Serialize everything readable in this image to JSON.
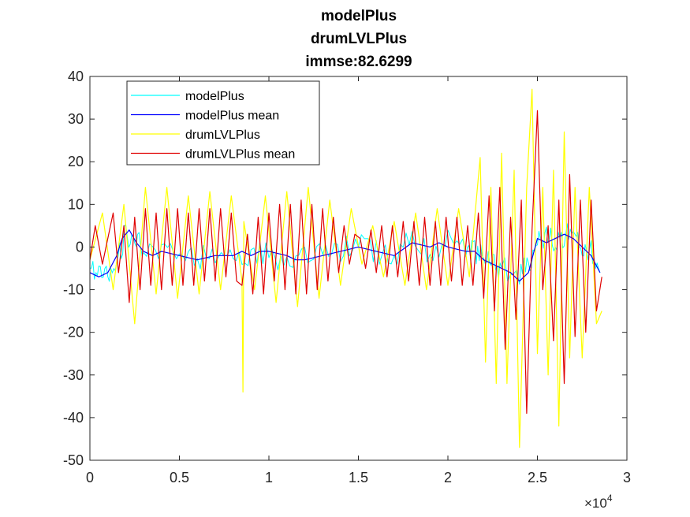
{
  "chart_data": {
    "type": "line",
    "title_lines": [
      "modelPlus",
      "drumLVLPlus",
      "immse:82.6299"
    ],
    "xlabel": "",
    "ylabel": "",
    "xlim": [
      0,
      30000
    ],
    "ylim": [
      -50,
      40
    ],
    "x_ticks": [
      0,
      5000,
      10000,
      15000,
      20000,
      25000,
      30000
    ],
    "x_tick_labels": [
      "0",
      "0.5",
      "1",
      "1.5",
      "2",
      "2.5",
      "3"
    ],
    "x_exponent_label": "×10",
    "x_exponent_power": "4",
    "y_ticks": [
      -50,
      -40,
      -30,
      -20,
      -10,
      0,
      10,
      20,
      30,
      40
    ],
    "y_tick_labels": [
      "-50",
      "-40",
      "-30",
      "-20",
      "-10",
      "0",
      "10",
      "20",
      "30",
      "40"
    ],
    "grid": false,
    "legend_position": "top-left",
    "series": [
      {
        "name": "modelPlus",
        "color": "#00ffff",
        "x": [
          0,
          500,
          1000,
          1500,
          2000,
          2500,
          3000,
          4000,
          5000,
          6000,
          7000,
          8000,
          9000,
          10000,
          11000,
          12000,
          13000,
          14000,
          15000,
          16000,
          17000,
          18000,
          19000,
          20000,
          21000,
          21500,
          22000,
          22500,
          23000,
          24000,
          24500,
          25000,
          25500,
          26000,
          26500,
          27000,
          27500,
          28000,
          28500
        ],
        "values": [
          -5,
          -7,
          -6,
          -3,
          3,
          2,
          -1,
          -2,
          -1,
          -3,
          -1,
          -3,
          -2,
          -1,
          -4,
          -3,
          -2,
          -1,
          1,
          -1,
          -2,
          2,
          -1,
          1,
          -1,
          -1,
          -3,
          -4,
          -5,
          -7,
          -4,
          2,
          2,
          1,
          3,
          2,
          0,
          -1,
          -6
        ],
        "noise": 3
      },
      {
        "name": "modelPlus mean",
        "color": "#0000ff",
        "x": [
          0,
          500,
          1000,
          1500,
          1800,
          2200,
          2600,
          3000,
          3500,
          4000,
          5000,
          6000,
          7000,
          8000,
          8500,
          9000,
          9500,
          10000,
          11000,
          11500,
          12000,
          13000,
          14000,
          15000,
          16000,
          17000,
          18000,
          19000,
          19500,
          20000,
          21000,
          21500,
          22000,
          22500,
          23000,
          23500,
          24000,
          24500,
          25000,
          25500,
          26000,
          26500,
          27000,
          27500,
          28000,
          28500
        ],
        "values": [
          -6,
          -7,
          -6,
          -2,
          2,
          4,
          1,
          -1,
          -2,
          -1,
          -2,
          -3,
          -2,
          -2,
          -1,
          -2,
          -1,
          -1,
          -2,
          -3,
          -3,
          -2,
          -1,
          0,
          -1,
          -2,
          1,
          0,
          1,
          0,
          -1,
          -1,
          -3,
          -4,
          -5,
          -6,
          -8,
          -6,
          2,
          1,
          2,
          3,
          2,
          0,
          -2,
          -6
        ]
      },
      {
        "name": "drumLVLPlus",
        "color": "#ffff00",
        "x": [
          0,
          700,
          1300,
          1900,
          2500,
          3100,
          3700,
          4300,
          4900,
          5500,
          6100,
          6700,
          7300,
          7900,
          8500,
          8550,
          8600,
          9200,
          9800,
          10400,
          11000,
          11600,
          12200,
          12800,
          13400,
          14000,
          14600,
          15200,
          15800,
          16400,
          17000,
          17600,
          18200,
          18800,
          19400,
          20000,
          20600,
          21200,
          21800,
          22100,
          22400,
          22700,
          23000,
          23300,
          23700,
          24000,
          24400,
          24700,
          25000,
          25300,
          25600,
          25900,
          26200,
          26500,
          26800,
          27100,
          27500,
          27900,
          28300,
          28600
        ],
        "values": [
          -3,
          8,
          -10,
          10,
          -18,
          14,
          -11,
          14,
          -12,
          12,
          -11,
          13,
          -10,
          12,
          -8,
          -34,
          6,
          -10,
          12,
          -13,
          13,
          -14,
          14,
          -12,
          11,
          -9,
          9,
          -4,
          5,
          -7,
          6,
          -9,
          8,
          -10,
          9,
          -9,
          9,
          -7,
          21,
          -27,
          14,
          -32,
          22,
          -32,
          18,
          -47,
          14,
          37,
          -25,
          14,
          -30,
          18,
          -42,
          27,
          -26,
          14,
          -26,
          14,
          -18,
          -15
        ]
      },
      {
        "name": "drumLVLPlus mean",
        "color": "#e00000",
        "x": [
          0,
          300,
          700,
          1000,
          1300,
          1600,
          1900,
          2200,
          2500,
          2800,
          3100,
          3400,
          3700,
          4000,
          4300,
          4600,
          4900,
          5200,
          5500,
          5800,
          6100,
          6400,
          6700,
          7000,
          7300,
          7600,
          7900,
          8200,
          8500,
          8800,
          9100,
          9400,
          9700,
          10000,
          10300,
          10600,
          10900,
          11200,
          11500,
          11800,
          12100,
          12400,
          12700,
          13000,
          13300,
          13600,
          13900,
          14200,
          14500,
          14800,
          15100,
          15400,
          15700,
          16000,
          16300,
          16600,
          16900,
          17200,
          17500,
          17800,
          18100,
          18400,
          18700,
          19000,
          19300,
          19600,
          19900,
          20200,
          20500,
          20800,
          21100,
          21400,
          21700,
          22000,
          22300,
          22600,
          22900,
          23200,
          23500,
          23800,
          24100,
          24400,
          24700,
          25000,
          25300,
          25600,
          25900,
          26200,
          26500,
          26800,
          27100,
          27400,
          27700,
          28000,
          28300,
          28600
        ],
        "values": [
          -3,
          5,
          -4,
          2,
          8,
          -6,
          5,
          -13,
          7,
          -10,
          9,
          -9,
          8,
          -10,
          9,
          -9,
          9,
          -9,
          8,
          -9,
          9,
          -8,
          9,
          -8,
          9,
          -7,
          8,
          -8,
          -9,
          3,
          -11,
          7,
          -11,
          8,
          -8,
          10,
          -10,
          10,
          -11,
          11,
          -11,
          10,
          -10,
          9,
          -8,
          7,
          -6,
          5,
          -4,
          3,
          2,
          -5,
          4,
          -6,
          5,
          -7,
          5,
          -7,
          6,
          -8,
          6,
          -9,
          7,
          -9,
          6,
          -9,
          7,
          -8,
          7,
          -9,
          5,
          -9,
          8,
          -12,
          12,
          -15,
          14,
          -24,
          7,
          -17,
          11,
          -39,
          4,
          32,
          -10,
          5,
          -22,
          11,
          -32,
          17,
          -21,
          11,
          -20,
          11,
          -15,
          -7
        ]
      }
    ]
  }
}
